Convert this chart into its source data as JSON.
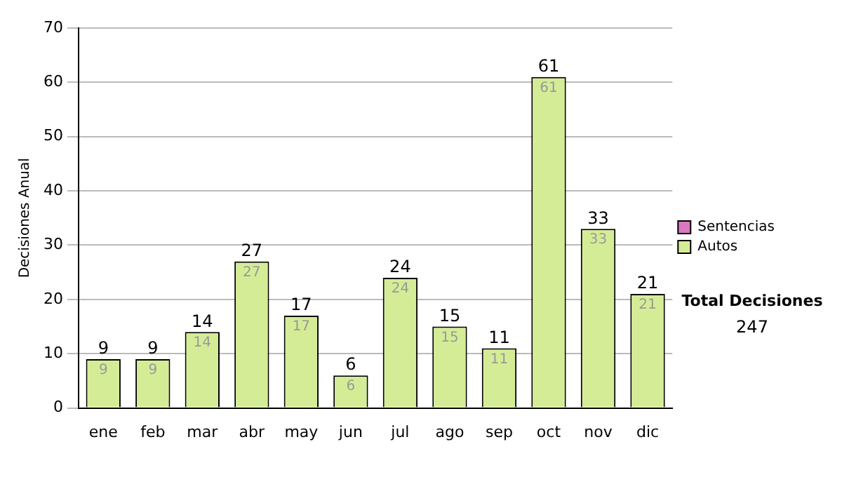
{
  "chart_data": {
    "type": "bar",
    "ylabel": "Decisiones Anual",
    "categories": [
      "ene",
      "feb",
      "mar",
      "abr",
      "may",
      "jun",
      "jul",
      "ago",
      "sep",
      "oct",
      "nov",
      "dic"
    ],
    "series": [
      {
        "name": "Sentencias",
        "color": "#d977c0",
        "values": [
          0,
          0,
          0,
          0,
          0,
          0,
          0,
          0,
          0,
          0,
          0,
          0
        ]
      },
      {
        "name": "Autos",
        "color": "#d5ec96",
        "values": [
          9,
          9,
          14,
          27,
          17,
          6,
          24,
          15,
          11,
          61,
          33,
          21
        ],
        "value_labels": [
          "9",
          "9",
          "14",
          "27",
          "17",
          "6",
          "24",
          "15",
          "11",
          "61",
          "33",
          "21"
        ]
      }
    ],
    "stacked": true,
    "totals": [
      "9",
      "9",
      "14",
      "27",
      "17",
      "6",
      "24",
      "15",
      "11",
      "61",
      "33",
      "21"
    ],
    "ylim": [
      0,
      70
    ],
    "yticks": [
      0,
      10,
      20,
      30,
      40,
      50,
      60,
      70
    ],
    "grid": "y",
    "legend": "right",
    "annotations": [
      "Total Decisiones",
      "247"
    ]
  }
}
